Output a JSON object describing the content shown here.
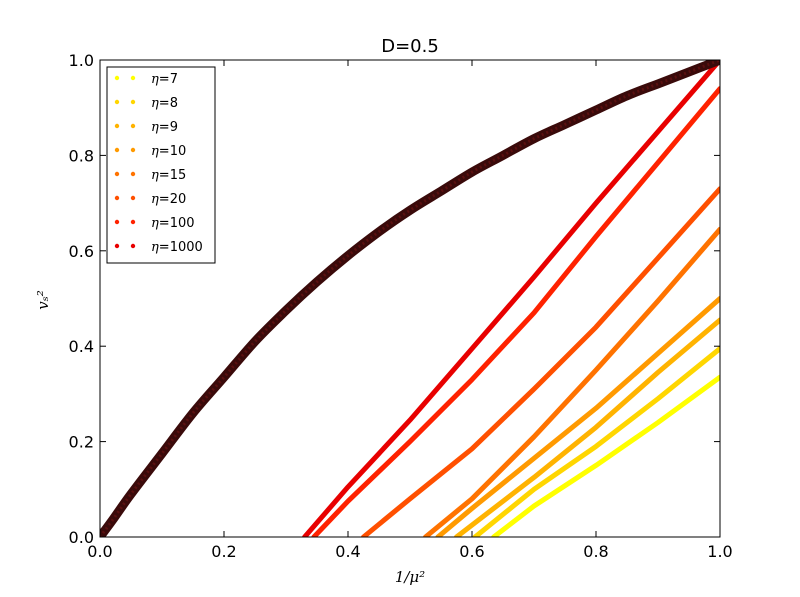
{
  "chart_data": {
    "type": "line",
    "title": "D=0.5",
    "xlabel": "1/μ²",
    "ylabel": "vₛ²",
    "xlim": [
      0.0,
      1.0
    ],
    "ylim": [
      0.0,
      1.0
    ],
    "xticks": [
      "0.0",
      "0.2",
      "0.4",
      "0.6",
      "0.8",
      "1.0"
    ],
    "yticks": [
      "0.0",
      "0.2",
      "0.4",
      "0.6",
      "0.8",
      "1.0"
    ],
    "grid": false,
    "legend": {
      "placement": "top-left",
      "entries": [
        {
          "prefix": "η",
          "equals": "=",
          "value": "7",
          "color": "#ffff00"
        },
        {
          "prefix": "η",
          "equals": "=",
          "value": "8",
          "color": "#ffd600"
        },
        {
          "prefix": "η",
          "equals": "=",
          "value": "9",
          "color": "#ffb300"
        },
        {
          "prefix": "η",
          "equals": "=",
          "value": "10",
          "color": "#ff9a00"
        },
        {
          "prefix": "η",
          "equals": "=",
          "value": "15",
          "color": "#ff7300"
        },
        {
          "prefix": "η",
          "equals": "=",
          "value": "20",
          "color": "#ff5000"
        },
        {
          "prefix": "η",
          "equals": "=",
          "value": "100",
          "color": "#ff2200"
        },
        {
          "prefix": "η",
          "equals": "=",
          "value": "1000",
          "color": "#e80000"
        }
      ]
    },
    "series": [
      {
        "color": "#ffff00",
        "x": [
          0.635,
          0.7,
          0.8,
          0.9,
          1.0
        ],
        "y": [
          0.0,
          0.065,
          0.15,
          0.24,
          0.335
        ]
      },
      {
        "color": "#ffd600",
        "x": [
          0.605,
          0.7,
          0.8,
          0.9,
          1.0
        ],
        "y": [
          0.0,
          0.1,
          0.19,
          0.29,
          0.395
        ]
      },
      {
        "color": "#ffb300",
        "x": [
          0.575,
          0.7,
          0.8,
          0.9,
          1.0
        ],
        "y": [
          0.0,
          0.125,
          0.23,
          0.345,
          0.455
        ]
      },
      {
        "color": "#ff9a00",
        "x": [
          0.545,
          0.6,
          0.7,
          0.8,
          0.9,
          1.0
        ],
        "y": [
          0.0,
          0.06,
          0.165,
          0.27,
          0.385,
          0.5
        ]
      },
      {
        "color": "#ff7300",
        "x": [
          0.525,
          0.6,
          0.7,
          0.8,
          0.9,
          1.0
        ],
        "y": [
          0.0,
          0.08,
          0.21,
          0.35,
          0.495,
          0.645
        ]
      },
      {
        "color": "#ff5000",
        "x": [
          0.425,
          0.5,
          0.6,
          0.7,
          0.8,
          0.9,
          1.0
        ],
        "y": [
          0.0,
          0.08,
          0.185,
          0.31,
          0.44,
          0.585,
          0.73
        ]
      },
      {
        "color": "#ff2200",
        "x": [
          0.345,
          0.4,
          0.5,
          0.6,
          0.7,
          0.8,
          0.9,
          1.0
        ],
        "y": [
          0.0,
          0.075,
          0.2,
          0.33,
          0.47,
          0.63,
          0.785,
          0.94
        ]
      },
      {
        "color": "#e80000",
        "x": [
          0.33,
          0.4,
          0.5,
          0.6,
          0.7,
          0.8,
          0.9,
          1.0
        ],
        "y": [
          0.0,
          0.105,
          0.245,
          0.395,
          0.545,
          0.7,
          0.85,
          1.0
        ]
      }
    ],
    "envelope": {
      "color": "#3a0a0a",
      "x": [
        0.0,
        0.02,
        0.05,
        0.1,
        0.15,
        0.2,
        0.25,
        0.3,
        0.35,
        0.4,
        0.45,
        0.5,
        0.55,
        0.6,
        0.65,
        0.7,
        0.75,
        0.8,
        0.85,
        0.9,
        0.95,
        1.0
      ],
      "y": [
        0.0,
        0.035,
        0.09,
        0.175,
        0.26,
        0.335,
        0.41,
        0.475,
        0.535,
        0.59,
        0.64,
        0.685,
        0.725,
        0.765,
        0.8,
        0.835,
        0.865,
        0.895,
        0.925,
        0.95,
        0.975,
        1.0
      ]
    }
  }
}
